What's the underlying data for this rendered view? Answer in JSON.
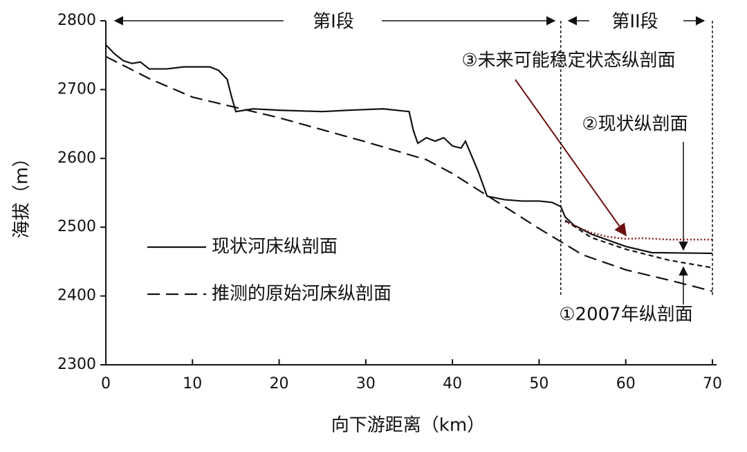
{
  "chart_data": {
    "type": "line",
    "xlabel": "向下游距离（km）",
    "ylabel": "海拔（m）",
    "xlim": [
      0,
      70
    ],
    "ylim": [
      2300,
      2800
    ],
    "xticks": [
      0,
      10,
      20,
      30,
      40,
      50,
      60,
      70
    ],
    "yticks": [
      2300,
      2400,
      2500,
      2600,
      2700,
      2800
    ],
    "vlines": [
      52.5,
      70
    ],
    "annotations": [
      "第I段",
      "第II段",
      "②现状纵剖面"
    ],
    "series": [
      {
        "name": "现状河床纵剖面",
        "color": "#111111",
        "style": "solid",
        "legend": true,
        "x": [
          0,
          1,
          2,
          3,
          4,
          5,
          7,
          9,
          12,
          13,
          14,
          14.5,
          15,
          17,
          20,
          25,
          28,
          32,
          35,
          35.5,
          36,
          37,
          38,
          39,
          40,
          41,
          41.5,
          42,
          43,
          44,
          46,
          48,
          50,
          51.5,
          52.5,
          53,
          54,
          56,
          60,
          63,
          70
        ],
        "values": [
          2765,
          2752,
          2742,
          2738,
          2740,
          2730,
          2730,
          2733,
          2733,
          2728,
          2715,
          2690,
          2668,
          2672,
          2670,
          2668,
          2670,
          2672,
          2668,
          2640,
          2622,
          2630,
          2625,
          2630,
          2618,
          2615,
          2625,
          2610,
          2580,
          2545,
          2540,
          2538,
          2538,
          2536,
          2530,
          2515,
          2503,
          2490,
          2472,
          2463,
          2462
        ]
      },
      {
        "name": "推测的原始河床纵剖面",
        "color": "#111111",
        "style": "dashed",
        "legend": true,
        "x": [
          0,
          5,
          10,
          20,
          30,
          37,
          40,
          45,
          50,
          55,
          60,
          65,
          70
        ],
        "values": [
          2748,
          2716,
          2689,
          2659,
          2624,
          2598,
          2578,
          2538,
          2498,
          2460,
          2438,
          2423,
          2407
        ]
      },
      {
        "name": "①2007年纵剖面",
        "color": "#111111",
        "style": "short",
        "legend": false,
        "x": [
          53,
          56,
          60,
          65,
          70
        ],
        "values": [
          2510,
          2485,
          2468,
          2452,
          2441
        ]
      },
      {
        "name": "③未来可能稳定状态纵剖面",
        "color": "#8b1a1a",
        "style": "dotted",
        "legend": false,
        "x": [
          53,
          56,
          58,
          60,
          62,
          65,
          70
        ],
        "values": [
          2508,
          2492,
          2486,
          2483,
          2484,
          2482,
          2482
        ]
      }
    ]
  }
}
